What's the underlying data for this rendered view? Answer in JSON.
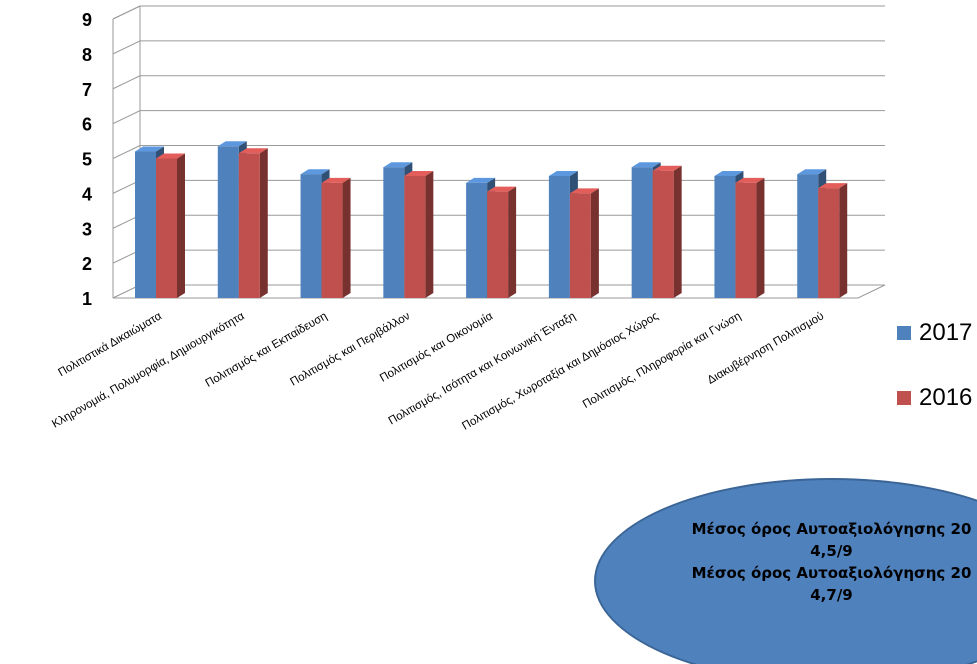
{
  "chart_data": {
    "type": "bar",
    "title": "",
    "xlabel": "",
    "ylabel": "",
    "ylim": [
      1,
      9
    ],
    "yticks": [
      "1",
      "2",
      "3",
      "4",
      "5",
      "6",
      "7",
      "8",
      "9"
    ],
    "grid": true,
    "three_d": true,
    "legend_position": "right",
    "categories": [
      "Πολιτιστικά Δικαιώματα",
      "Κληρονομιά, Πολυμορφία, Δημιουργικότητα",
      "Πολιτισμός και Εκπαίδευση",
      "Πολιτισμός και Περιβάλλον",
      "Πολιτισμός και Οικονομία",
      "Πολιτισμός, Ισότητα και Κοινωνική Ένταξη",
      "Πολιτισμός, Χωροταξία και Δημόσιος Χώρος",
      "Πολιτισμός, Πληροφορία και Γνώση",
      "Διακυβέρνηση Πολιτισμού"
    ],
    "series": [
      {
        "name": "2017",
        "color": "#4f81bd",
        "values": [
          5.2,
          5.35,
          4.55,
          4.75,
          4.3,
          4.5,
          4.75,
          4.5,
          4.55
        ]
      },
      {
        "name": "2016",
        "color": "#c0504d",
        "values": [
          5.0,
          5.15,
          4.3,
          4.5,
          4.05,
          4.0,
          4.65,
          4.3,
          4.15
        ]
      }
    ]
  },
  "summary": {
    "line1": "Μέσος όρος Αυτοαξιολόγησης 20",
    "line2": "4,5/9",
    "line3": "Μέσος όρος Αυτοαξιολόγησης 20",
    "line4": "4,7/9",
    "fill": "#4f81bd"
  }
}
